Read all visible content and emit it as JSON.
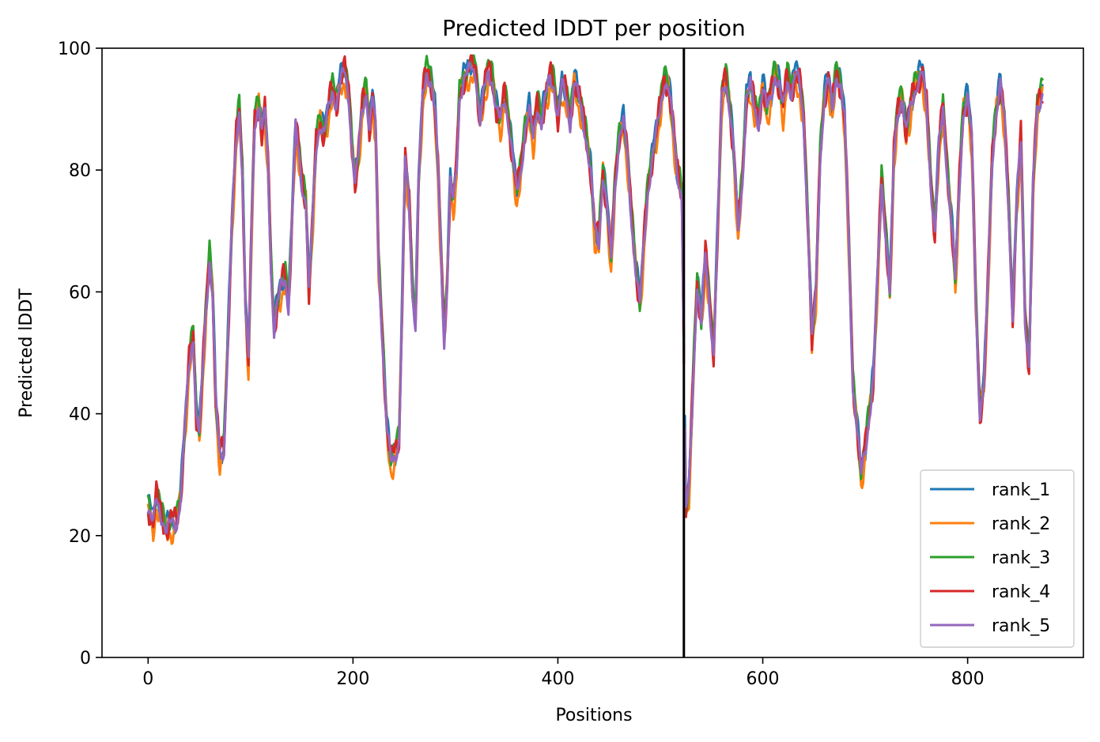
{
  "chart_data": {
    "type": "line",
    "title": "Predicted lDDT per position",
    "xlabel": "Positions",
    "ylabel": "Predicted lDDT",
    "xlim": [
      -45,
      913
    ],
    "ylim": [
      0,
      100
    ],
    "x_ticks": [
      0,
      200,
      400,
      600,
      800
    ],
    "y_ticks": [
      0,
      20,
      40,
      60,
      80,
      100
    ],
    "grid": false,
    "legend_position": "bottom-right",
    "vertical_line": {
      "x": 523,
      "color": "#000000"
    },
    "x_range": [
      0,
      873
    ],
    "base_profile": [
      [
        0,
        25
      ],
      [
        5,
        22
      ],
      [
        8,
        26
      ],
      [
        12,
        24
      ],
      [
        18,
        21
      ],
      [
        22,
        22
      ],
      [
        28,
        22
      ],
      [
        32,
        27
      ],
      [
        36,
        38
      ],
      [
        40,
        48
      ],
      [
        44,
        53
      ],
      [
        47,
        40
      ],
      [
        50,
        37
      ],
      [
        53,
        46
      ],
      [
        57,
        58
      ],
      [
        60,
        66
      ],
      [
        63,
        60
      ],
      [
        66,
        42
      ],
      [
        70,
        33
      ],
      [
        74,
        34
      ],
      [
        77,
        48
      ],
      [
        82,
        72
      ],
      [
        86,
        85
      ],
      [
        89,
        90
      ],
      [
        92,
        80
      ],
      [
        95,
        58
      ],
      [
        98,
        48
      ],
      [
        101,
        70
      ],
      [
        104,
        88
      ],
      [
        108,
        91
      ],
      [
        111,
        86
      ],
      [
        114,
        90
      ],
      [
        117,
        81
      ],
      [
        120,
        64
      ],
      [
        123,
        54
      ],
      [
        126,
        58
      ],
      [
        130,
        61
      ],
      [
        134,
        62
      ],
      [
        137,
        58
      ],
      [
        140,
        70
      ],
      [
        144,
        87
      ],
      [
        147,
        83
      ],
      [
        150,
        78
      ],
      [
        154,
        75
      ],
      [
        157,
        60
      ],
      [
        160,
        70
      ],
      [
        164,
        84
      ],
      [
        168,
        88
      ],
      [
        172,
        86
      ],
      [
        176,
        90
      ],
      [
        180,
        93
      ],
      [
        184,
        91
      ],
      [
        188,
        95
      ],
      [
        192,
        96
      ],
      [
        196,
        92
      ],
      [
        199,
        84
      ],
      [
        202,
        78
      ],
      [
        205,
        82
      ],
      [
        209,
        90
      ],
      [
        213,
        93
      ],
      [
        216,
        87
      ],
      [
        219,
        92
      ],
      [
        222,
        87
      ],
      [
        225,
        64
      ],
      [
        229,
        52
      ],
      [
        233,
        38
      ],
      [
        237,
        32
      ],
      [
        241,
        33
      ],
      [
        245,
        36
      ],
      [
        248,
        58
      ],
      [
        251,
        82
      ],
      [
        255,
        74
      ],
      [
        258,
        60
      ],
      [
        261,
        55
      ],
      [
        264,
        78
      ],
      [
        268,
        92
      ],
      [
        272,
        96
      ],
      [
        276,
        95
      ],
      [
        280,
        90
      ],
      [
        283,
        80
      ],
      [
        286,
        66
      ],
      [
        289,
        52
      ],
      [
        292,
        62
      ],
      [
        295,
        78
      ],
      [
        298,
        75
      ],
      [
        301,
        80
      ],
      [
        304,
        92
      ],
      [
        308,
        95
      ],
      [
        312,
        96
      ],
      [
        316,
        97
      ],
      [
        320,
        96
      ],
      [
        324,
        88
      ],
      [
        328,
        93
      ],
      [
        332,
        96
      ],
      [
        336,
        95
      ],
      [
        340,
        90
      ],
      [
        344,
        88
      ],
      [
        348,
        92
      ],
      [
        352,
        88
      ],
      [
        356,
        82
      ],
      [
        360,
        76
      ],
      [
        364,
        80
      ],
      [
        368,
        87
      ],
      [
        372,
        90
      ],
      [
        376,
        85
      ],
      [
        380,
        91
      ],
      [
        384,
        88
      ],
      [
        388,
        92
      ],
      [
        392,
        95
      ],
      [
        396,
        94
      ],
      [
        400,
        89
      ],
      [
        404,
        94
      ],
      [
        408,
        92
      ],
      [
        412,
        88
      ],
      [
        416,
        95
      ],
      [
        420,
        92
      ],
      [
        424,
        89
      ],
      [
        428,
        85
      ],
      [
        432,
        80
      ],
      [
        436,
        70
      ],
      [
        440,
        68
      ],
      [
        444,
        80
      ],
      [
        448,
        74
      ],
      [
        452,
        65
      ],
      [
        456,
        78
      ],
      [
        460,
        86
      ],
      [
        464,
        88
      ],
      [
        468,
        82
      ],
      [
        472,
        72
      ],
      [
        476,
        64
      ],
      [
        480,
        58
      ],
      [
        484,
        68
      ],
      [
        488,
        77
      ],
      [
        492,
        82
      ],
      [
        496,
        86
      ],
      [
        500,
        90
      ],
      [
        504,
        95
      ],
      [
        508,
        94
      ],
      [
        512,
        88
      ],
      [
        516,
        80
      ],
      [
        521,
        76
      ],
      [
        525,
        24
      ],
      [
        528,
        28
      ],
      [
        532,
        45
      ],
      [
        536,
        62
      ],
      [
        540,
        55
      ],
      [
        544,
        66
      ],
      [
        548,
        58
      ],
      [
        552,
        50
      ],
      [
        556,
        70
      ],
      [
        560,
        92
      ],
      [
        564,
        95
      ],
      [
        568,
        90
      ],
      [
        572,
        82
      ],
      [
        576,
        70
      ],
      [
        580,
        78
      ],
      [
        584,
        92
      ],
      [
        588,
        94
      ],
      [
        592,
        90
      ],
      [
        596,
        88
      ],
      [
        600,
        94
      ],
      [
        604,
        90
      ],
      [
        608,
        92
      ],
      [
        612,
        96
      ],
      [
        616,
        94
      ],
      [
        620,
        90
      ],
      [
        624,
        95
      ],
      [
        628,
        93
      ],
      [
        632,
        96
      ],
      [
        636,
        94
      ],
      [
        640,
        88
      ],
      [
        644,
        72
      ],
      [
        648,
        52
      ],
      [
        652,
        60
      ],
      [
        656,
        82
      ],
      [
        660,
        92
      ],
      [
        664,
        95
      ],
      [
        668,
        90
      ],
      [
        672,
        96
      ],
      [
        676,
        94
      ],
      [
        680,
        88
      ],
      [
        684,
        68
      ],
      [
        688,
        45
      ],
      [
        692,
        38
      ],
      [
        696,
        30
      ],
      [
        700,
        34
      ],
      [
        704,
        40
      ],
      [
        708,
        46
      ],
      [
        712,
        62
      ],
      [
        716,
        78
      ],
      [
        720,
        70
      ],
      [
        724,
        60
      ],
      [
        728,
        82
      ],
      [
        732,
        90
      ],
      [
        736,
        92
      ],
      [
        740,
        86
      ],
      [
        744,
        90
      ],
      [
        748,
        93
      ],
      [
        752,
        95
      ],
      [
        756,
        96
      ],
      [
        760,
        90
      ],
      [
        764,
        78
      ],
      [
        768,
        70
      ],
      [
        772,
        84
      ],
      [
        776,
        90
      ],
      [
        780,
        80
      ],
      [
        784,
        72
      ],
      [
        788,
        62
      ],
      [
        792,
        78
      ],
      [
        796,
        90
      ],
      [
        800,
        92
      ],
      [
        804,
        85
      ],
      [
        808,
        58
      ],
      [
        812,
        40
      ],
      [
        816,
        45
      ],
      [
        820,
        62
      ],
      [
        824,
        82
      ],
      [
        828,
        90
      ],
      [
        832,
        94
      ],
      [
        836,
        88
      ],
      [
        840,
        74
      ],
      [
        844,
        56
      ],
      [
        848,
        75
      ],
      [
        852,
        85
      ],
      [
        856,
        56
      ],
      [
        860,
        48
      ],
      [
        864,
        78
      ],
      [
        868,
        90
      ],
      [
        873,
        93
      ]
    ],
    "series": [
      {
        "name": "rank_1",
        "color": "#1f77b4",
        "offset": 0.6,
        "amp": 1.4,
        "phase": 0.3
      },
      {
        "name": "rank_2",
        "color": "#ff7f0e",
        "offset": -0.9,
        "amp": 1.7,
        "phase": 1.7
      },
      {
        "name": "rank_3",
        "color": "#2ca02c",
        "offset": 0.9,
        "amp": 1.3,
        "phase": 2.9
      },
      {
        "name": "rank_4",
        "color": "#d62728",
        "offset": 0.2,
        "amp": 1.8,
        "phase": 4.1
      },
      {
        "name": "rank_5",
        "color": "#9467bd",
        "offset": -0.2,
        "amp": 1.0,
        "phase": 5.3
      }
    ]
  }
}
